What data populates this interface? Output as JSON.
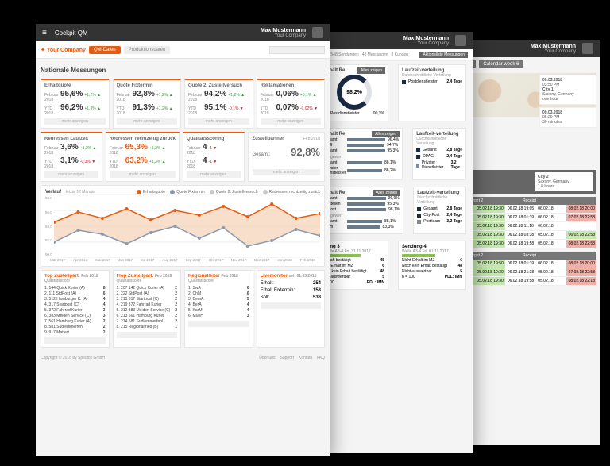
{
  "user": {
    "name": "Max Mustermann",
    "company": "Your Company"
  },
  "win1": {
    "title": "Cockpit QM",
    "logo": "Your Company",
    "tabs": {
      "active": "QM-Daten",
      "inactive": "Produktionsdaten"
    },
    "section": "Nationale Messungen",
    "period_labels": {
      "month": "Februar 2018",
      "ytd": "YTD 2018"
    },
    "kpi_row1": [
      {
        "name": "Erhaltquote",
        "m": "95,6%",
        "md": "+1,2%",
        "mu": true,
        "y": "96,2%",
        "yd": "+1,3%",
        "yu": true
      },
      {
        "name": "Quote Fixtermin",
        "m": "92,8%",
        "md": "+1,2%",
        "mu": true,
        "y": "91,3%",
        "yd": "+1,2%",
        "yu": true
      },
      {
        "name": "Quote 2. Zustellversuch",
        "m": "94,2%",
        "md": "+1,2%",
        "mu": true,
        "y": "95,1%",
        "yd": "-0,1%",
        "yu": false
      },
      {
        "name": "Reklamationen",
        "m": "0,06%",
        "md": "+0,1%",
        "mu": true,
        "y": "0,07%",
        "yd": "-0,02%",
        "yu": false
      }
    ],
    "kpi_row2": [
      {
        "name": "Redressen Laufzeit",
        "m": "3,6%",
        "md": "+1,2%",
        "mu": true,
        "y": "3,1%",
        "yd": "-0,3%",
        "yu": false
      },
      {
        "name": "Redressen rechtzeitig zurück",
        "m": "65,3%",
        "md": "+1,2%",
        "mu": true,
        "y": "63,2%",
        "yd": "+1,3%",
        "yu": true,
        "orange": true
      },
      {
        "name": "Qualitätsscoring",
        "m": "4",
        "md": "-1",
        "mu": false,
        "y": "4",
        "yd": "-1",
        "yu": false
      }
    ],
    "zustellpartner": {
      "title": "Zustellpartner",
      "period": "Feb 2018",
      "label": "Gesamt:",
      "value": "92,8%"
    },
    "btn_more": "mehr anzeigen",
    "chart": {
      "title": "Verlauf",
      "sub": "letzte 12 Monate",
      "legend": [
        {
          "l": "Erhaltsquote",
          "c": "#e85a0d"
        },
        {
          "l": "Quote Fixtermin",
          "c": "#8a9aae"
        },
        {
          "l": "Quote 2. Zustellversuch",
          "c": "#c9c9c9"
        },
        {
          "l": "Redressen rechtzeitig zurück",
          "c": "#c9c9c9"
        }
      ],
      "yticks": [
        "98,0",
        "96,0",
        "94,0",
        "92,0",
        "90,0"
      ],
      "months": [
        "Mär 2017",
        "Apr 2017",
        "Mai 2017",
        "Jun 2017",
        "Jul 2017",
        "Aug 2017",
        "Sep 2017",
        "Okt 2017",
        "Nov 2017",
        "Dez 2017",
        "Jan 2018",
        "Feb 2018"
      ],
      "series1": [
        94.5,
        95.8,
        95.0,
        96.2,
        94.8,
        96.0,
        95.4,
        96.5,
        95.2,
        96.8,
        95.0,
        95.6
      ],
      "series2": [
        92.0,
        93.5,
        93.0,
        91.8,
        93.2,
        94.0,
        92.5,
        93.8,
        91.5,
        92.2,
        93.6,
        92.8
      ],
      "area_color": "#f2c9a8",
      "line1_color": "#e85a0d",
      "line2_color": "#8a9aae",
      "y_min": 90,
      "y_max": 98
    },
    "top": {
      "title": "Top Zustellpart.",
      "period": "Feb 2018",
      "sub": "Qualitätsscore",
      "items": [
        [
          "1.",
          "144",
          "Quick Kurier (A)",
          "8"
        ],
        [
          "2.",
          "111",
          "StdPost (A)",
          "6"
        ],
        [
          "3.",
          "512",
          "Hamburger K. (A)",
          "4"
        ],
        [
          "4.",
          "317",
          "Startpost (C)",
          "4"
        ],
        [
          "5.",
          "372",
          "Fahrrad Kurier",
          "3"
        ],
        [
          "6.",
          "383",
          "Meiden Service (C)",
          "3"
        ],
        [
          "7.",
          "561",
          "Hamburg Kurier (A)",
          "2"
        ],
        [
          "8.",
          "581",
          "Sudlemmerfehl",
          "2"
        ],
        [
          "9.",
          "917",
          "Mattert",
          "2"
        ]
      ]
    },
    "flop": {
      "title": "Flop Zustellpart.",
      "period": "Feb 2018",
      "sub": "Qualitätsscore",
      "items": [
        [
          "1.",
          "207",
          "142 Quick Kurier (A)",
          "2"
        ],
        [
          "2.",
          "222",
          "StdPost (A)",
          "2"
        ],
        [
          "3.",
          "213",
          "317 Startpost (C)",
          "2"
        ],
        [
          "4.",
          "219",
          "372 Fahrrad Kurier",
          "2"
        ],
        [
          "5.",
          "212",
          "383 Meiden Service (C)",
          "2"
        ],
        [
          "6.",
          "213",
          "561 Hamburg Kurier",
          "2"
        ],
        [
          "7.",
          "214",
          "581 Sudlemmerfehl",
          "2"
        ],
        [
          "8.",
          "215",
          "Regionaltrieb (B)",
          "1"
        ]
      ]
    },
    "regional": {
      "title": "Regionalleiter",
      "period": "Feb 2018",
      "sub": "Qualitätsscore",
      "items": [
        [
          "1.",
          "SwA",
          "6"
        ],
        [
          "2.",
          "ChM",
          "6"
        ],
        [
          "3.",
          "DemA",
          "5"
        ],
        [
          "4.",
          "BerA",
          "4"
        ],
        [
          "5.",
          "KarM",
          "4"
        ],
        [
          "6.",
          "MueH",
          "3"
        ]
      ]
    },
    "live": {
      "title": "Livemonitor",
      "asof": "seit 01.03.2018",
      "rows": [
        [
          "Erhalt:",
          "254"
        ],
        [
          "Erhalt Fixtermin:",
          "153"
        ],
        [
          "Soll:",
          "538"
        ]
      ]
    },
    "footer": {
      "copy": "Copyright © 2018 by Spectos GmbH",
      "links": [
        "Über uns",
        "Support",
        "Kontakt",
        "FAQ"
      ]
    }
  },
  "win2": {
    "crumb": [
      "143.548 Sendungen",
      "48 Messungen",
      "8 Kunden"
    ],
    "crumb_tab": "Aktionsliste Messungen",
    "erhalt_re": {
      "title": "Erhalt Re",
      "btn": "Alles zeigen",
      "donut_label": "Gesamt",
      "donut_value": "98,2%",
      "dist": [
        {
          "c": "#1a2a44",
          "l": "Postdienstleister",
          "v": "90,3%"
        }
      ]
    },
    "laufzeit1": {
      "title": "Laufzeit-verteilung",
      "sub": "Durchschnittliche Verteilung",
      "rows": [
        {
          "c": "#1a2a44",
          "l": "Postdienstleister",
          "v": "2,4 Tage"
        }
      ]
    },
    "erhalt_re_bars": {
      "title": "Erhalt Re",
      "btn": "Alles zeigen",
      "rows": [
        {
          "l": "gesamt",
          "w": 96,
          "v": "96,4%"
        },
        {
          "l": "PAG",
          "w": 94,
          "v": "94,7%"
        },
        {
          "l": "gesamt",
          "w": 95,
          "v": "95,3%"
        }
      ],
      "sub": "ausgewert",
      "rows2": [
        {
          "l": "gesamt",
          "w": 88,
          "v": "88,1%"
        },
        {
          "l": "Privater Dienstleister",
          "w": 88,
          "v": "88,2%"
        }
      ]
    },
    "laufzeit2": {
      "title": "Laufzeit-verteilung",
      "sub": "Durchschnittliche Verteilung",
      "rows": [
        {
          "c": "#1a2a44",
          "l": "Gesamt",
          "v": "2,8 Tage"
        },
        {
          "c": "#1a2a44",
          "l": "DPAG",
          "v": "2,4 Tage"
        },
        {
          "c": "#808a96",
          "l": "Privater Dienstleister",
          "v": "3,2 Tage"
        }
      ]
    },
    "erhalt_re_bars2": {
      "title": "Erhalt Re",
      "btn": "Alles zeigen",
      "rows": [
        {
          "l": "gesamt",
          "w": 97,
          "v": "96,9%"
        },
        {
          "l": "Bestellen",
          "w": 95,
          "v": "95,3%"
        },
        {
          "l": "B-Post",
          "w": 98,
          "v": "98,1%"
        }
      ],
      "sub": "ausgewert",
      "rows2": [
        {
          "l": "gesamt",
          "w": 88,
          "v": "88,1%"
        },
        {
          "l": "team",
          "w": 83,
          "v": "83,3%"
        }
      ]
    },
    "laufzeit3": {
      "title": "Laufzeit-verteilung",
      "sub": "Durchschnittliche Verteilung",
      "rows": [
        {
          "c": "#1a2a44",
          "l": "Gesamt",
          "v": "2,8 Tage"
        },
        {
          "c": "#1a2a44",
          "l": "City-Post",
          "v": "2,4 Tage"
        },
        {
          "c": "#808a96",
          "l": "Postteam",
          "v": "3,2 Tage"
        }
      ]
    },
    "sendungen": [
      {
        "h": "dung 3",
        "s": "Welle A3-4   Fri, 31.11.2017",
        "rows": [
          [
            "schaft bestätigt",
            "45"
          ],
          [
            "cht-Erhalt im MZ",
            "6"
          ],
          [
            "och kein Erhalt bestätigt",
            "48"
          ],
          [
            "cht-auswertbar",
            "5"
          ],
          [
            "= 100",
            "PDL: IMN"
          ]
        ]
      },
      {
        "h": "Sendung 4",
        "s": "Welle A3-4   Fri, 01.11.2017",
        "rows": [
          [
            "Nicht-Erhalt im MZ",
            "6"
          ],
          [
            "Noch kein Erhalt bestätigt",
            "48"
          ],
          [
            "Nicht-auswertbar",
            "5"
          ],
          [
            "n = 100",
            "PDL: IMN"
          ]
        ]
      }
    ]
  },
  "win3": {
    "tabs": [
      "Campaigns",
      "Calendar week 6"
    ],
    "entries": [
      {
        "t": "09.03.2018",
        "s": "03:50 PM",
        "p": "City 1",
        "d": "Saxony, Germany",
        "m": "one hour"
      },
      {
        "t": "09.03.2018",
        "s": "05:20 PM",
        "d": "30 minutes"
      }
    ],
    "toast": {
      "l": "on detected",
      "n": "9",
      "r": "City 2",
      "rs": "Saxony, Germany",
      "rm": "1.8 hours"
    },
    "tbl_a": {
      "head": [
        "Intermediate target 2",
        "",
        "",
        "Receipt",
        ""
      ],
      "sub": [
        "Target",
        "Scan",
        "Dest",
        "Dest",
        ""
      ],
      "rows": [
        [
          {
            "t": "2.18 19:30",
            "c": "g"
          },
          {
            "t": "05.02.18 19:30",
            "c": "g"
          },
          {
            "t": "06.02.18 19:05",
            "c": ""
          },
          {
            "t": "06.02.18",
            "c": ""
          },
          {
            "t": "08.02.18 20:00",
            "c": "r"
          }
        ],
        [
          {
            "t": "2.18 18:40",
            "c": "g"
          },
          {
            "t": "05.02.18 19:30",
            "c": "g"
          },
          {
            "t": "06.02.18 01:39",
            "c": ""
          },
          {
            "t": "06.02.18",
            "c": ""
          },
          {
            "t": "07.02.18 22:58",
            "c": "r"
          }
        ],
        [
          {
            "t": "2.18 18:00",
            "c": "g"
          },
          {
            "t": "05.02.18 19:30",
            "c": "g"
          },
          {
            "t": "06.02.18 11:16",
            "c": ""
          },
          {
            "t": "06.02.18",
            "c": ""
          },
          {
            "t": "",
            "c": ""
          }
        ],
        [
          {
            "t": "2.18 17:00",
            "c": "g"
          },
          {
            "t": "05.02.18 19:30",
            "c": "g"
          },
          {
            "t": "06.02.18 03:38",
            "c": ""
          },
          {
            "t": "05.02.18",
            "c": ""
          },
          {
            "t": "06.02.18 22:58",
            "c": "g"
          }
        ],
        [
          {
            "t": "2.18 18:00",
            "c": "g"
          },
          {
            "t": "05.02.18 19:30",
            "c": "g"
          },
          {
            "t": "06.02.18 19:58",
            "c": ""
          },
          {
            "t": "05.02.18",
            "c": ""
          },
          {
            "t": "08.02.18 22:58",
            "c": "r"
          }
        ]
      ]
    },
    "tbl_b": {
      "head": [
        "Intermediate target 2",
        "",
        "",
        "Receipt",
        ""
      ],
      "sub": [
        "Target",
        "Scan",
        "Dest",
        "Dest",
        ""
      ],
      "rows": [
        [
          {
            "t": "2.18 19:30",
            "c": "g"
          },
          {
            "t": "05.02.18 19:50",
            "c": "g"
          },
          {
            "t": "06.02.18 01:39",
            "c": ""
          },
          {
            "t": "06.02.18",
            "c": ""
          },
          {
            "t": "08.02.18 20:00",
            "c": "r"
          }
        ],
        [
          {
            "t": "2.18 18:30",
            "c": "g"
          },
          {
            "t": "05.02.18 19:30",
            "c": "g"
          },
          {
            "t": "06.02.18 21:38",
            "c": ""
          },
          {
            "t": "05.02.18",
            "c": ""
          },
          {
            "t": "07.02.18 22:58",
            "c": "r"
          }
        ],
        [
          {
            "t": "2.18 18:30",
            "c": "g"
          },
          {
            "t": "05.02.18 19:30",
            "c": "g"
          },
          {
            "t": "06.02.18 19:58",
            "c": ""
          },
          {
            "t": "05.02.18",
            "c": ""
          },
          {
            "t": "08.02.18 22:18",
            "c": "r"
          }
        ]
      ]
    }
  }
}
